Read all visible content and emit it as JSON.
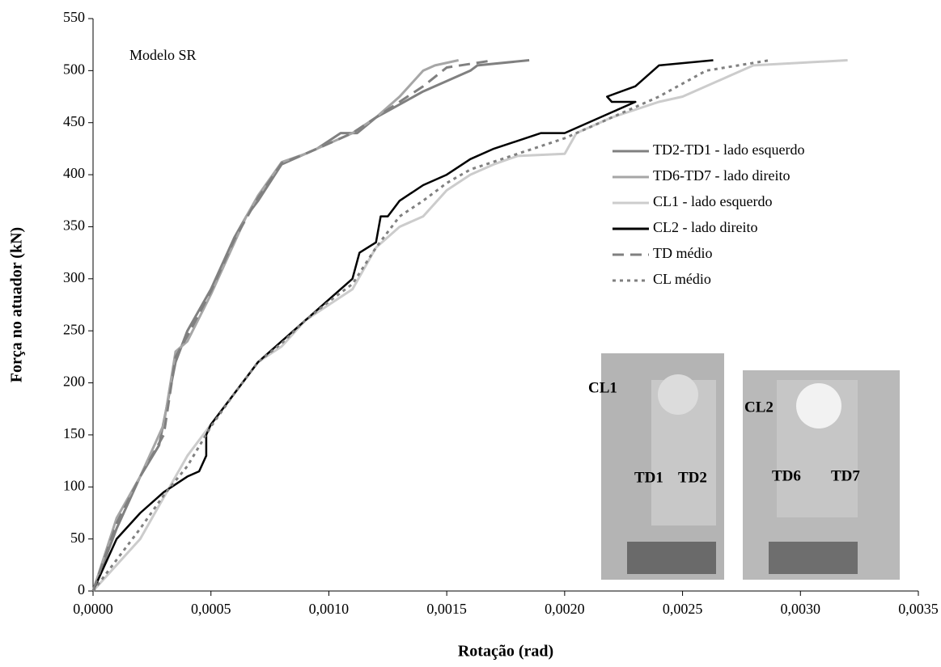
{
  "chart_data": {
    "type": "line",
    "xlabel": "Rotação (rad)",
    "ylabel": "Força no atuador (kN)",
    "annotations": [
      "Modelo SR"
    ],
    "photo_labels": [
      [
        "CL1",
        "TD1",
        "TD2"
      ],
      [
        "CL2",
        "TD6",
        "TD7"
      ]
    ],
    "legend": "right",
    "xlim": [
      0,
      0.0035
    ],
    "ylim": [
      0,
      550
    ],
    "xticks": [
      {
        "value": 0,
        "label": "0,0000"
      },
      {
        "value": 0.0005,
        "label": "0,0005"
      },
      {
        "value": 0.001,
        "label": "0,0010"
      },
      {
        "value": 0.0015,
        "label": "0,0015"
      },
      {
        "value": 0.002,
        "label": "0,0020"
      },
      {
        "value": 0.0025,
        "label": "0,0025"
      },
      {
        "value": 0.003,
        "label": "0,0030"
      },
      {
        "value": 0.0035,
        "label": "0,0035"
      }
    ],
    "yticks": [
      0,
      50,
      100,
      150,
      200,
      250,
      300,
      350,
      400,
      450,
      500,
      550
    ],
    "series": [
      {
        "name": "TD2-TD1 - lado esquerdo",
        "color": "#808080",
        "dash": "solid",
        "x": [
          0,
          0.0001,
          0.0002,
          0.00028,
          0.00035,
          0.0004,
          0.0005,
          0.0006,
          0.00065,
          0.0007,
          0.0008,
          0.0009,
          0.00095,
          0.00105,
          0.00112,
          0.0012,
          0.0014,
          0.0016,
          0.00163,
          0.00185
        ],
        "values": [
          0,
          60,
          110,
          140,
          220,
          250,
          290,
          340,
          360,
          375,
          410,
          420,
          425,
          440,
          440,
          455,
          480,
          500,
          505,
          510
        ]
      },
      {
        "name": "TD6-TD7 - lado direito",
        "color": "#a6a6a6",
        "dash": "solid",
        "x": [
          0,
          0.0001,
          0.0002,
          0.0003,
          0.00035,
          0.0004,
          0.0005,
          0.0006,
          0.00065,
          0.0007,
          0.0008,
          0.0009,
          0.001,
          0.0011,
          0.0012,
          0.0013,
          0.0014,
          0.00145,
          0.00155
        ],
        "values": [
          0,
          70,
          110,
          160,
          230,
          240,
          285,
          335,
          360,
          380,
          412,
          420,
          430,
          440,
          455,
          475,
          500,
          505,
          510
        ]
      },
      {
        "name": "CL1 - lado esquerdo",
        "color": "#cccccc",
        "dash": "solid",
        "x": [
          0,
          0.0002,
          0.0003,
          0.0004,
          0.0005,
          0.0006,
          0.0007,
          0.0008,
          0.0009,
          0.001,
          0.0011,
          0.0012,
          0.0013,
          0.0014,
          0.0015,
          0.0016,
          0.0017,
          0.0018,
          0.002,
          0.00205,
          0.0022,
          0.0024,
          0.0025,
          0.0027,
          0.0028,
          0.0032
        ],
        "values": [
          0,
          50,
          90,
          130,
          160,
          190,
          220,
          235,
          260,
          275,
          290,
          330,
          350,
          360,
          385,
          400,
          410,
          418,
          420,
          440,
          455,
          470,
          475,
          495,
          505,
          510
        ]
      },
      {
        "name": "CL2 - lado direito",
        "color": "#000000",
        "dash": "solid",
        "x": [
          0,
          0.0001,
          0.0002,
          0.0003,
          0.0004,
          0.00045,
          0.00048,
          0.00048,
          0.0005,
          0.0006,
          0.0007,
          0.0008,
          0.0009,
          0.001,
          0.0011,
          0.00113,
          0.0012,
          0.00122,
          0.00125,
          0.0013,
          0.0014,
          0.0015,
          0.0016,
          0.0017,
          0.0019,
          0.002,
          0.0022,
          0.0023,
          0.0022,
          0.00218,
          0.0023,
          0.0024,
          0.00263
        ],
        "values": [
          0,
          50,
          75,
          95,
          110,
          115,
          130,
          150,
          160,
          190,
          220,
          240,
          260,
          280,
          300,
          325,
          335,
          360,
          360,
          375,
          390,
          400,
          415,
          425,
          440,
          440,
          460,
          470,
          470,
          475,
          485,
          505,
          510
        ]
      },
      {
        "name": "TD médio",
        "color": "#808080",
        "dash": "long",
        "x": [
          0,
          0.0001,
          0.0002,
          0.0003,
          0.00035,
          0.0004,
          0.0005,
          0.0006,
          0.0007,
          0.0008,
          0.0009,
          0.001,
          0.0011,
          0.0012,
          0.0014,
          0.0015,
          0.0017
        ],
        "values": [
          0,
          65,
          110,
          150,
          225,
          245,
          288,
          338,
          378,
          411,
          420,
          430,
          440,
          455,
          485,
          503,
          510
        ]
      },
      {
        "name": "CL médio",
        "color": "#808080",
        "dash": "dot",
        "x": [
          0,
          0.0002,
          0.0003,
          0.0004,
          0.0005,
          0.0006,
          0.0007,
          0.0008,
          0.0009,
          0.001,
          0.0011,
          0.0012,
          0.0013,
          0.0014,
          0.0015,
          0.0016,
          0.0018,
          0.002,
          0.0022,
          0.0024,
          0.0026,
          0.00287
        ],
        "values": [
          0,
          60,
          92,
          120,
          158,
          190,
          220,
          238,
          260,
          278,
          295,
          330,
          360,
          375,
          392,
          405,
          420,
          435,
          455,
          475,
          500,
          510
        ]
      }
    ]
  }
}
